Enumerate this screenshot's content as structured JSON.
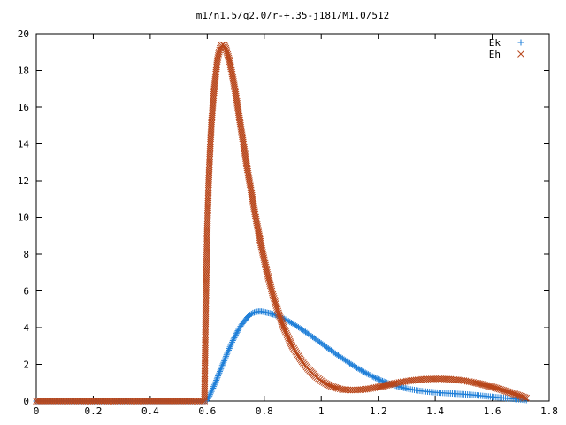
{
  "chart_data": {
    "type": "scatter",
    "title": "m1/n1.5/q2.0/r-+.35-j181/M1.0/512",
    "xlabel": "",
    "ylabel": "",
    "xlim": [
      0,
      1.8
    ],
    "ylim": [
      0,
      20
    ],
    "grid": false,
    "legend_position": "top-right",
    "x_ticks": [
      {
        "value": 0,
        "label": "0"
      },
      {
        "value": 0.2,
        "label": "0.2"
      },
      {
        "value": 0.4,
        "label": "0.4"
      },
      {
        "value": 0.6,
        "label": "0.6"
      },
      {
        "value": 0.8,
        "label": "0.8"
      },
      {
        "value": 1.0,
        "label": "1"
      },
      {
        "value": 1.2,
        "label": "1.2"
      },
      {
        "value": 1.4,
        "label": "1.4"
      },
      {
        "value": 1.6,
        "label": "1.6"
      },
      {
        "value": 1.8,
        "label": "1.8"
      }
    ],
    "y_ticks": [
      {
        "value": 0,
        "label": "0"
      },
      {
        "value": 2,
        "label": "2"
      },
      {
        "value": 4,
        "label": "4"
      },
      {
        "value": 6,
        "label": "6"
      },
      {
        "value": 8,
        "label": "8"
      },
      {
        "value": 10,
        "label": "10"
      },
      {
        "value": 12,
        "label": "12"
      },
      {
        "value": 14,
        "label": "14"
      },
      {
        "value": 16,
        "label": "16"
      },
      {
        "value": 18,
        "label": "18"
      },
      {
        "value": 20,
        "label": "20"
      }
    ],
    "series": [
      {
        "name": "Ek",
        "marker": "plus",
        "color": "#1f7fd8",
        "points": [
          [
            0,
            0
          ],
          [
            0.05,
            0
          ],
          [
            0.1,
            0
          ],
          [
            0.15,
            0
          ],
          [
            0.2,
            0
          ],
          [
            0.25,
            0
          ],
          [
            0.3,
            0
          ],
          [
            0.35,
            0
          ],
          [
            0.4,
            0
          ],
          [
            0.45,
            0
          ],
          [
            0.5,
            0
          ],
          [
            0.55,
            0
          ],
          [
            0.59,
            0
          ],
          [
            0.6,
            0.05
          ],
          [
            0.61,
            0.35
          ],
          [
            0.62,
            0.7
          ],
          [
            0.63,
            1.05
          ],
          [
            0.64,
            1.45
          ],
          [
            0.65,
            1.85
          ],
          [
            0.66,
            2.2
          ],
          [
            0.67,
            2.6
          ],
          [
            0.68,
            2.95
          ],
          [
            0.69,
            3.3
          ],
          [
            0.7,
            3.6
          ],
          [
            0.71,
            3.9
          ],
          [
            0.72,
            4.15
          ],
          [
            0.73,
            4.35
          ],
          [
            0.74,
            4.55
          ],
          [
            0.75,
            4.7
          ],
          [
            0.76,
            4.8
          ],
          [
            0.77,
            4.85
          ],
          [
            0.78,
            4.88
          ],
          [
            0.79,
            4.88
          ],
          [
            0.8,
            4.85
          ],
          [
            0.82,
            4.78
          ],
          [
            0.84,
            4.68
          ],
          [
            0.86,
            4.55
          ],
          [
            0.88,
            4.4
          ],
          [
            0.9,
            4.22
          ],
          [
            0.92,
            4.02
          ],
          [
            0.94,
            3.82
          ],
          [
            0.96,
            3.6
          ],
          [
            0.98,
            3.38
          ],
          [
            1.0,
            3.15
          ],
          [
            1.02,
            2.92
          ],
          [
            1.04,
            2.7
          ],
          [
            1.06,
            2.48
          ],
          [
            1.08,
            2.27
          ],
          [
            1.1,
            2.06
          ],
          [
            1.12,
            1.86
          ],
          [
            1.14,
            1.68
          ],
          [
            1.16,
            1.5
          ],
          [
            1.18,
            1.34
          ],
          [
            1.2,
            1.19
          ],
          [
            1.22,
            1.06
          ],
          [
            1.24,
            0.94
          ],
          [
            1.26,
            0.84
          ],
          [
            1.28,
            0.75
          ],
          [
            1.3,
            0.68
          ],
          [
            1.32,
            0.62
          ],
          [
            1.34,
            0.57
          ],
          [
            1.36,
            0.53
          ],
          [
            1.38,
            0.5
          ],
          [
            1.4,
            0.47
          ],
          [
            1.42,
            0.45
          ],
          [
            1.44,
            0.43
          ],
          [
            1.46,
            0.41
          ],
          [
            1.48,
            0.39
          ],
          [
            1.5,
            0.37
          ],
          [
            1.52,
            0.35
          ],
          [
            1.54,
            0.32
          ],
          [
            1.56,
            0.29
          ],
          [
            1.58,
            0.26
          ],
          [
            1.6,
            0.23
          ],
          [
            1.62,
            0.2
          ],
          [
            1.64,
            0.17
          ],
          [
            1.66,
            0.14
          ],
          [
            1.68,
            0.11
          ],
          [
            1.7,
            0.08
          ],
          [
            1.72,
            0.05
          ]
        ]
      },
      {
        "name": "Eh",
        "marker": "cross",
        "color": "#b8461a",
        "points": [
          [
            0,
            0
          ],
          [
            0.05,
            0
          ],
          [
            0.1,
            0
          ],
          [
            0.15,
            0
          ],
          [
            0.2,
            0
          ],
          [
            0.25,
            0
          ],
          [
            0.3,
            0
          ],
          [
            0.35,
            0
          ],
          [
            0.4,
            0
          ],
          [
            0.45,
            0
          ],
          [
            0.5,
            0
          ],
          [
            0.55,
            0
          ],
          [
            0.59,
            0
          ],
          [
            0.595,
            5.5
          ],
          [
            0.6,
            9.3
          ],
          [
            0.605,
            11.9
          ],
          [
            0.61,
            13.7
          ],
          [
            0.615,
            15.2
          ],
          [
            0.62,
            16.2
          ],
          [
            0.625,
            17.1
          ],
          [
            0.63,
            17.8
          ],
          [
            0.635,
            18.5
          ],
          [
            0.64,
            18.9
          ],
          [
            0.645,
            19.2
          ],
          [
            0.65,
            19.35
          ],
          [
            0.655,
            19.4
          ],
          [
            0.66,
            19.35
          ],
          [
            0.665,
            19.2
          ],
          [
            0.67,
            18.95
          ],
          [
            0.68,
            18.4
          ],
          [
            0.69,
            17.6
          ],
          [
            0.7,
            16.7
          ],
          [
            0.71,
            15.7
          ],
          [
            0.72,
            14.7
          ],
          [
            0.73,
            13.7
          ],
          [
            0.74,
            12.7
          ],
          [
            0.75,
            11.8
          ],
          [
            0.76,
            10.9
          ],
          [
            0.77,
            10.0
          ],
          [
            0.78,
            9.2
          ],
          [
            0.79,
            8.4
          ],
          [
            0.8,
            7.7
          ],
          [
            0.81,
            7.0
          ],
          [
            0.82,
            6.4
          ],
          [
            0.83,
            5.8
          ],
          [
            0.84,
            5.3
          ],
          [
            0.85,
            4.8
          ],
          [
            0.86,
            4.35
          ],
          [
            0.87,
            3.95
          ],
          [
            0.88,
            3.6
          ],
          [
            0.89,
            3.25
          ],
          [
            0.9,
            2.95
          ],
          [
            0.92,
            2.45
          ],
          [
            0.94,
            2.0
          ],
          [
            0.96,
            1.65
          ],
          [
            0.98,
            1.35
          ],
          [
            1.0,
            1.1
          ],
          [
            1.02,
            0.92
          ],
          [
            1.04,
            0.78
          ],
          [
            1.06,
            0.68
          ],
          [
            1.08,
            0.62
          ],
          [
            1.1,
            0.6
          ],
          [
            1.12,
            0.6
          ],
          [
            1.14,
            0.62
          ],
          [
            1.16,
            0.65
          ],
          [
            1.18,
            0.7
          ],
          [
            1.2,
            0.76
          ],
          [
            1.22,
            0.83
          ],
          [
            1.24,
            0.9
          ],
          [
            1.26,
            0.97
          ],
          [
            1.28,
            1.03
          ],
          [
            1.3,
            1.08
          ],
          [
            1.32,
            1.12
          ],
          [
            1.34,
            1.16
          ],
          [
            1.36,
            1.19
          ],
          [
            1.38,
            1.2
          ],
          [
            1.4,
            1.21
          ],
          [
            1.42,
            1.21
          ],
          [
            1.44,
            1.2
          ],
          [
            1.46,
            1.18
          ],
          [
            1.48,
            1.15
          ],
          [
            1.5,
            1.11
          ],
          [
            1.52,
            1.06
          ],
          [
            1.54,
            1.0
          ],
          [
            1.56,
            0.93
          ],
          [
            1.58,
            0.85
          ],
          [
            1.6,
            0.77
          ],
          [
            1.62,
            0.68
          ],
          [
            1.64,
            0.58
          ],
          [
            1.66,
            0.48
          ],
          [
            1.68,
            0.38
          ],
          [
            1.7,
            0.27
          ],
          [
            1.72,
            0.16
          ]
        ]
      }
    ]
  }
}
